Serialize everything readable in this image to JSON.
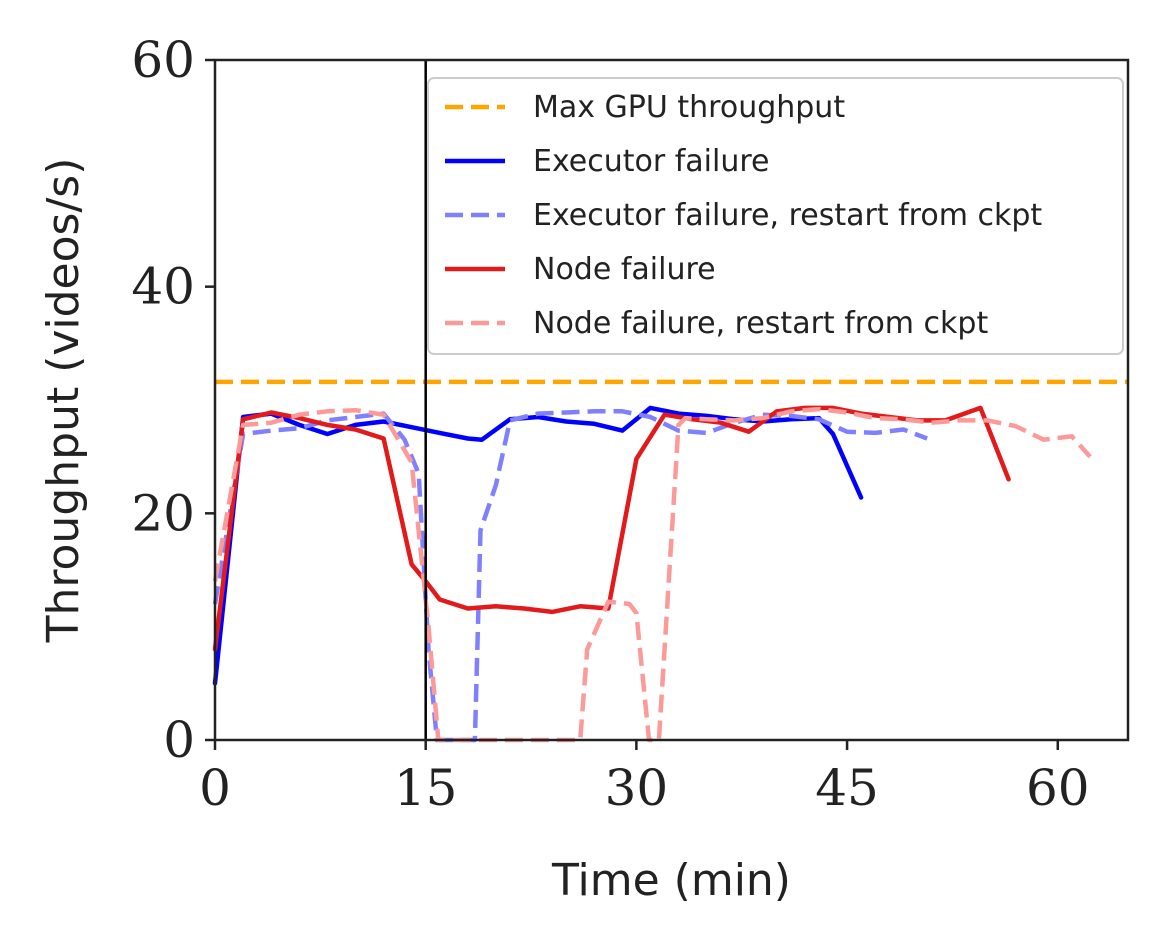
{
  "chart_data": {
    "type": "line",
    "xlabel": "Time (min)",
    "ylabel": "Throughput (videos/s)",
    "xlim": [
      0,
      65
    ],
    "ylim": [
      0,
      60
    ],
    "xticks": [
      0,
      15,
      30,
      45,
      60
    ],
    "yticks": [
      0,
      20,
      40,
      60
    ],
    "grid": false,
    "legend_position": "top-right",
    "vline_x": 15,
    "hline": {
      "name": "Max GPU throughput",
      "y": 31.6,
      "color": "#ffa500",
      "dash": true
    },
    "series": [
      {
        "name": "Executor failure",
        "color": "#0000ff",
        "dash": false,
        "opacity": 1,
        "x": [
          0,
          2,
          4,
          6,
          8,
          10,
          12,
          14,
          16,
          18,
          19,
          21,
          23,
          25,
          27,
          29,
          31,
          33,
          35,
          37,
          39,
          41,
          43,
          44,
          46
        ],
        "y": [
          5,
          28.5,
          28.8,
          27.8,
          27.0,
          27.8,
          28.1,
          27.6,
          27.1,
          26.6,
          26.5,
          28.3,
          28.5,
          28.1,
          27.9,
          27.3,
          29.3,
          28.8,
          28.6,
          28.3,
          28.1,
          28.3,
          28.4,
          27.0,
          21.4
        ]
      },
      {
        "name": "Executor failure, restart from ckpt",
        "color": "#8080ff",
        "dash": true,
        "opacity": 1,
        "x": [
          0,
          2,
          4,
          6,
          8,
          10,
          12,
          13.5,
          14.5,
          15.2,
          15.8,
          17,
          18.5,
          18.9,
          20,
          21,
          23,
          25,
          27,
          29,
          31,
          33,
          35,
          37,
          39,
          41,
          43,
          45,
          47,
          49,
          50.7
        ],
        "y": [
          12,
          27.0,
          27.3,
          27.5,
          28.2,
          28.5,
          28.8,
          26.5,
          23.5,
          8,
          0,
          0,
          0,
          18.5,
          22.5,
          28.2,
          28.8,
          28.9,
          29.0,
          29.0,
          28.5,
          27.3,
          27.1,
          28.0,
          28.7,
          28.6,
          28.3,
          27.2,
          27.1,
          27.4,
          26.6
        ]
      },
      {
        "name": "Node failure",
        "color": "#e31a1c",
        "dash": false,
        "opacity": 1,
        "x": [
          0,
          2,
          4,
          6,
          8,
          10,
          12,
          14,
          15,
          16,
          18,
          20,
          22,
          24,
          26,
          28,
          30,
          32,
          34,
          36,
          38,
          40,
          42,
          44,
          46,
          48,
          50,
          52,
          54.5,
          56.5
        ],
        "y": [
          8,
          28.3,
          28.9,
          28.4,
          27.8,
          27.4,
          26.6,
          15.5,
          14.0,
          12.4,
          11.6,
          11.8,
          11.6,
          11.3,
          11.8,
          11.6,
          24.8,
          28.7,
          28.3,
          28.0,
          27.2,
          29.0,
          29.3,
          29.3,
          28.8,
          28.5,
          28.2,
          28.2,
          29.3,
          23.0
        ]
      },
      {
        "name": "Node failure, restart from ckpt",
        "color": "#fb9a99",
        "dash": true,
        "opacity": 1,
        "x": [
          0,
          2,
          4,
          6,
          8,
          10,
          12,
          14,
          15.2,
          15.9,
          17,
          20,
          24,
          26,
          26.5,
          28,
          29.5,
          30,
          30.9,
          31.6,
          33,
          33.5,
          35,
          37,
          39,
          41,
          43,
          45,
          47,
          49,
          51,
          53,
          55,
          57,
          59,
          61,
          62.3
        ],
        "y": [
          14,
          27.8,
          28.0,
          28.7,
          29.0,
          29.1,
          28.7,
          24.5,
          10,
          0,
          0,
          0,
          0,
          0,
          8,
          12.2,
          12.0,
          11.2,
          0,
          0,
          27.8,
          28.4,
          28.3,
          28.2,
          28.4,
          29.0,
          29.2,
          28.9,
          28.4,
          28.3,
          28.0,
          28.2,
          28.2,
          27.7,
          26.5,
          26.8,
          25.0
        ]
      }
    ]
  }
}
